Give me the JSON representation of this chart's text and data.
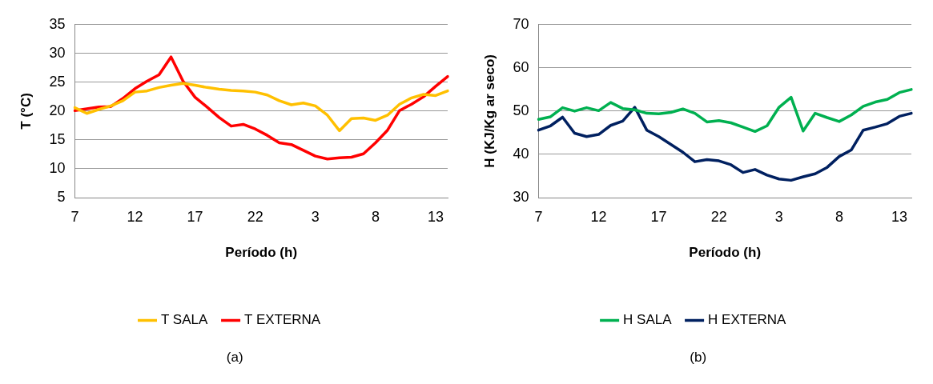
{
  "chart_data": [
    {
      "type": "line",
      "xlabel": "Período (h)",
      "ylabel": "T (°C)",
      "categories": [
        "7",
        null,
        null,
        null,
        null,
        "12",
        null,
        null,
        null,
        null,
        "17",
        null,
        null,
        null,
        null,
        "22",
        null,
        null,
        null,
        null,
        "3",
        null,
        null,
        null,
        null,
        "8",
        null,
        null,
        null,
        null,
        "13",
        null
      ],
      "ylim": [
        5,
        35
      ],
      "yticks": [
        5,
        10,
        15,
        20,
        25,
        30,
        35
      ],
      "grid": "y",
      "legend": "bottom",
      "marker": "none",
      "annotations": [
        "(a)"
      ],
      "series": [
        {
          "name": "T SALA",
          "color": "#ffc000",
          "values": [
            20.6,
            19.6,
            20.3,
            20.9,
            21.8,
            23.3,
            23.5,
            24.1,
            24.5,
            24.8,
            24.5,
            24.1,
            23.8,
            23.6,
            23.5,
            23.3,
            22.8,
            21.8,
            21.1,
            21.4,
            20.9,
            19.3,
            16.6,
            18.7,
            18.8,
            18.4,
            19.3,
            21.2,
            22.3,
            22.9,
            22.7,
            23.5
          ]
        },
        {
          "name": "T EXTERNA",
          "color": "#ff0000",
          "values": [
            20.1,
            20.4,
            20.7,
            20.8,
            22.2,
            23.9,
            25.2,
            26.3,
            29.4,
            25.2,
            22.4,
            20.7,
            18.9,
            17.4,
            17.7,
            16.9,
            15.8,
            14.5,
            14.2,
            13.2,
            12.2,
            11.7,
            11.9,
            12.0,
            12.6,
            14.5,
            16.7,
            20.1,
            21.2,
            22.5,
            24.3,
            26.0
          ]
        }
      ]
    },
    {
      "type": "line",
      "xlabel": "Período (h)",
      "ylabel": "H (KJ/Kg ar seco)",
      "categories": [
        "7",
        null,
        null,
        null,
        null,
        "12",
        null,
        null,
        null,
        null,
        "17",
        null,
        null,
        null,
        null,
        "22",
        null,
        null,
        null,
        null,
        "3",
        null,
        null,
        null,
        null,
        "8",
        null,
        null,
        null,
        null,
        "13",
        null
      ],
      "ylim": [
        30,
        70
      ],
      "yticks": [
        30,
        40,
        50,
        60,
        70
      ],
      "grid": "y",
      "legend": "bottom",
      "marker": "none",
      "annotations": [
        "(b)"
      ],
      "series": [
        {
          "name": "H SALA",
          "color": "#00b050",
          "values": [
            48.1,
            48.7,
            50.8,
            50.0,
            50.8,
            50.1,
            52.0,
            50.6,
            50.3,
            49.5,
            49.4,
            49.7,
            50.5,
            49.5,
            47.5,
            47.8,
            47.3,
            46.3,
            45.3,
            46.6,
            50.9,
            53.2,
            45.4,
            49.5,
            48.5,
            47.6,
            49.1,
            51.1,
            52.1,
            52.7,
            54.3,
            55.0
          ]
        },
        {
          "name": "H EXTERNA",
          "color": "#002060",
          "values": [
            45.6,
            46.6,
            48.6,
            44.9,
            44.1,
            44.6,
            46.7,
            47.7,
            50.9,
            45.6,
            44.1,
            42.3,
            40.5,
            38.3,
            38.8,
            38.5,
            37.6,
            35.8,
            36.5,
            35.2,
            34.3,
            34.0,
            34.8,
            35.5,
            37.0,
            39.5,
            41.0,
            45.6,
            46.3,
            47.1,
            48.8,
            49.5
          ]
        }
      ]
    }
  ]
}
